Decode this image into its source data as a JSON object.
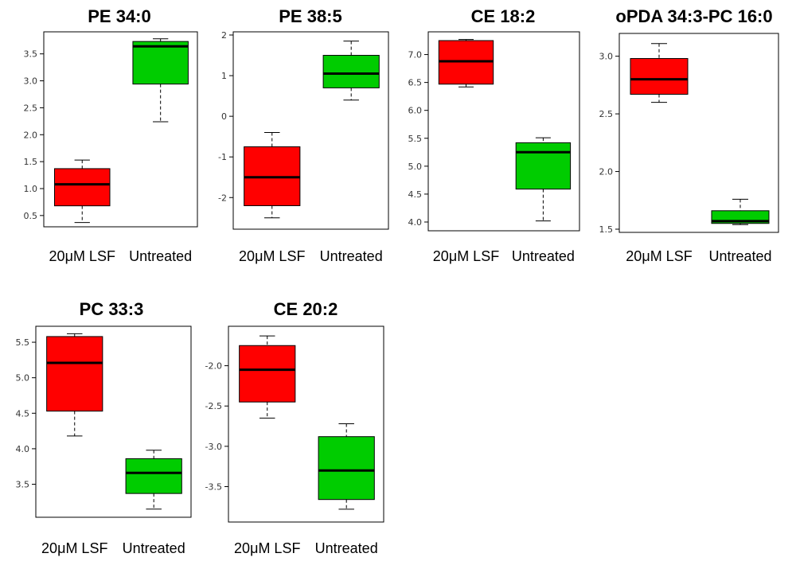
{
  "colors": {
    "lsf": "#ff0000",
    "untreated": "#00cc00",
    "axis": "#000000",
    "whisker": "#000000"
  },
  "chart_data": [
    {
      "type": "box",
      "title": "PE 34:0",
      "categories": [
        "20μM LSF",
        "Untreated"
      ],
      "yticks": [
        "0.5",
        "1.0",
        "1.5",
        "2.0",
        "2.5",
        "3.0",
        "3.5"
      ],
      "ylim": [
        0.35,
        3.85
      ],
      "series": [
        {
          "color": "#ff0000",
          "min": 0.37,
          "q1": 0.68,
          "median": 1.08,
          "q3": 1.37,
          "max": 1.53
        },
        {
          "color": "#00cc00",
          "min": 2.24,
          "q1": 2.94,
          "median": 3.64,
          "q3": 3.73,
          "max": 3.78
        }
      ]
    },
    {
      "type": "box",
      "title": "PE 38:5",
      "categories": [
        "20μM LSF",
        "Untreated"
      ],
      "yticks": [
        "-2",
        "-1",
        "0",
        "1",
        "2"
      ],
      "ylim": [
        -2.7,
        2.0
      ],
      "series": [
        {
          "color": "#ff0000",
          "min": -2.5,
          "q1": -2.2,
          "median": -1.5,
          "q3": -0.75,
          "max": -0.4
        },
        {
          "color": "#00cc00",
          "min": 0.4,
          "q1": 0.7,
          "median": 1.05,
          "q3": 1.5,
          "max": 1.85
        }
      ]
    },
    {
      "type": "box",
      "title": "CE 18:2",
      "categories": [
        "20μM LSF",
        "Untreated"
      ],
      "yticks": [
        "4.0",
        "4.5",
        "5.0",
        "5.5",
        "6.0",
        "6.5",
        "7.0"
      ],
      "ylim": [
        3.9,
        7.35
      ],
      "series": [
        {
          "color": "#ff0000",
          "min": 6.42,
          "q1": 6.47,
          "median": 6.88,
          "q3": 7.25,
          "max": 7.27
        },
        {
          "color": "#00cc00",
          "min": 4.02,
          "q1": 4.59,
          "median": 5.25,
          "q3": 5.42,
          "max": 5.51
        }
      ]
    },
    {
      "type": "box",
      "title": "oPDA 34:3-PC 16:0",
      "categories": [
        "20μM LSF",
        "Untreated"
      ],
      "yticks": [
        "1.5",
        "2.0",
        "2.5",
        "3.0"
      ],
      "ylim": [
        1.5,
        3.17
      ],
      "series": [
        {
          "color": "#ff0000",
          "min": 2.6,
          "q1": 2.67,
          "median": 2.8,
          "q3": 2.98,
          "max": 3.11
        },
        {
          "color": "#00cc00",
          "min": 1.54,
          "q1": 1.55,
          "median": 1.57,
          "q3": 1.66,
          "max": 1.76
        }
      ]
    },
    {
      "type": "box",
      "title": "PC 33:3",
      "categories": [
        "20μM LSF",
        "Untreated"
      ],
      "yticks": [
        "3.5",
        "4.0",
        "4.5",
        "5.0",
        "5.5"
      ],
      "ylim": [
        3.08,
        5.68
      ],
      "series": [
        {
          "color": "#ff0000",
          "min": 4.18,
          "q1": 4.53,
          "median": 5.21,
          "q3": 5.58,
          "max": 5.62
        },
        {
          "color": "#00cc00",
          "min": 3.15,
          "q1": 3.37,
          "median": 3.66,
          "q3": 3.86,
          "max": 3.98
        }
      ]
    },
    {
      "type": "box",
      "title": "CE 20:2",
      "categories": [
        "20μM LSF",
        "Untreated"
      ],
      "yticks": [
        "-3.5",
        "-3.0",
        "-2.5",
        "-2.0"
      ],
      "ylim": [
        -3.9,
        -1.55
      ],
      "series": [
        {
          "color": "#ff0000",
          "min": -2.65,
          "q1": -2.45,
          "median": -2.05,
          "q3": -1.75,
          "max": -1.63
        },
        {
          "color": "#00cc00",
          "min": -3.78,
          "q1": -3.66,
          "median": -3.3,
          "q3": -2.88,
          "max": -2.72
        }
      ]
    }
  ]
}
